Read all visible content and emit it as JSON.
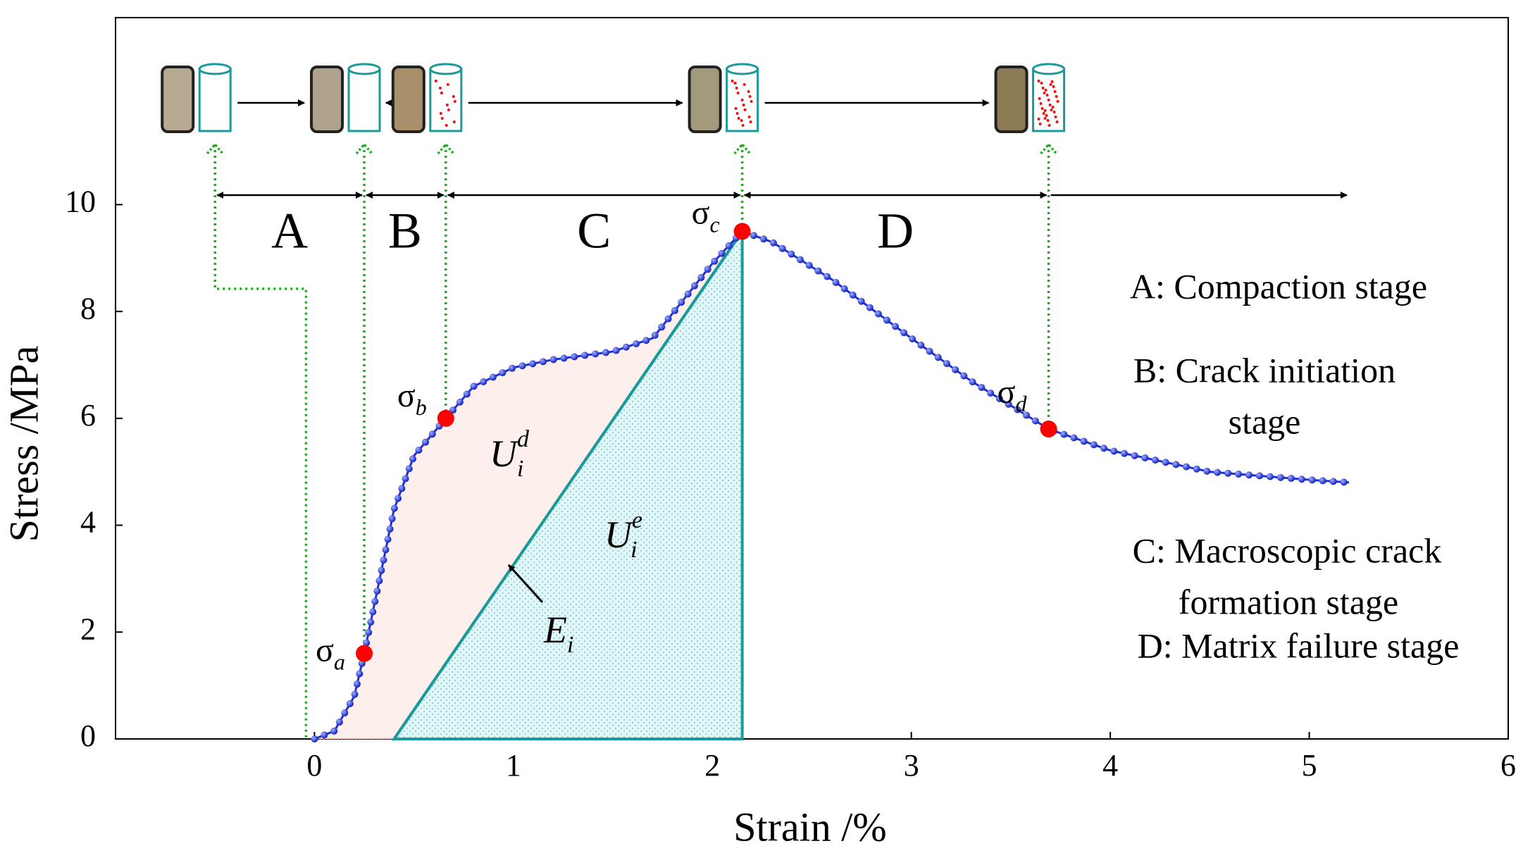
{
  "chart_data": {
    "type": "line",
    "x_label": "Strain /%",
    "y_label": "Stress /MPa",
    "xlim": [
      -1,
      6
    ],
    "xticks": [
      0,
      1,
      2,
      3,
      4,
      5,
      6
    ],
    "ylim": [
      0,
      13.5
    ],
    "yticks": [
      0,
      2,
      4,
      6,
      8,
      10
    ],
    "color": "#1f2fd8",
    "x": [
      0,
      0.1,
      0.2,
      0.25,
      0.3,
      0.4,
      0.5,
      0.66,
      0.8,
      1.0,
      1.2,
      1.5,
      1.7,
      1.85,
      2.0,
      2.15,
      2.3,
      2.6,
      3.0,
      3.3,
      3.69,
      4.0,
      4.5,
      5.0,
      5.2
    ],
    "values": [
      0,
      0.15,
      0.8,
      1.6,
      2.5,
      4.3,
      5.3,
      6.0,
      6.6,
      6.95,
      7.1,
      7.25,
      7.5,
      8.2,
      8.9,
      9.5,
      9.3,
      8.6,
      7.5,
      6.7,
      5.8,
      5.4,
      5.0,
      4.85,
      4.8
    ],
    "points": [
      {
        "x": 0.25,
        "y": 1.6,
        "label": {
          "base": "σ",
          "sub": "a"
        }
      },
      {
        "x": 0.66,
        "y": 6.0,
        "label": {
          "base": "σ",
          "sub": "b"
        }
      },
      {
        "x": 2.15,
        "y": 9.5,
        "label": {
          "base": "σ",
          "sub": "c"
        }
      },
      {
        "x": 3.69,
        "y": 5.8,
        "label": {
          "base": "σ",
          "sub": "d"
        }
      }
    ],
    "elastic_line": {
      "x": [
        0.4,
        2.15
      ],
      "y": [
        0,
        9.5
      ]
    },
    "stage_bounds": [
      -0.5,
      0.25,
      0.66,
      2.15,
      3.69
    ],
    "stages": [
      "A",
      "B",
      "C",
      "D"
    ],
    "annotations": [
      {
        "base": "U",
        "sub": "i",
        "sup": "d"
      },
      {
        "base": "U",
        "sub": "i",
        "sup": "e"
      },
      {
        "base": "E",
        "sub": "i"
      }
    ],
    "legend_lines": [
      "A: Compaction stage",
      "B: Crack initiation",
      "stage",
      "C: Macroscopic crack",
      "formation stage",
      "D: Matrix failure stage"
    ]
  }
}
